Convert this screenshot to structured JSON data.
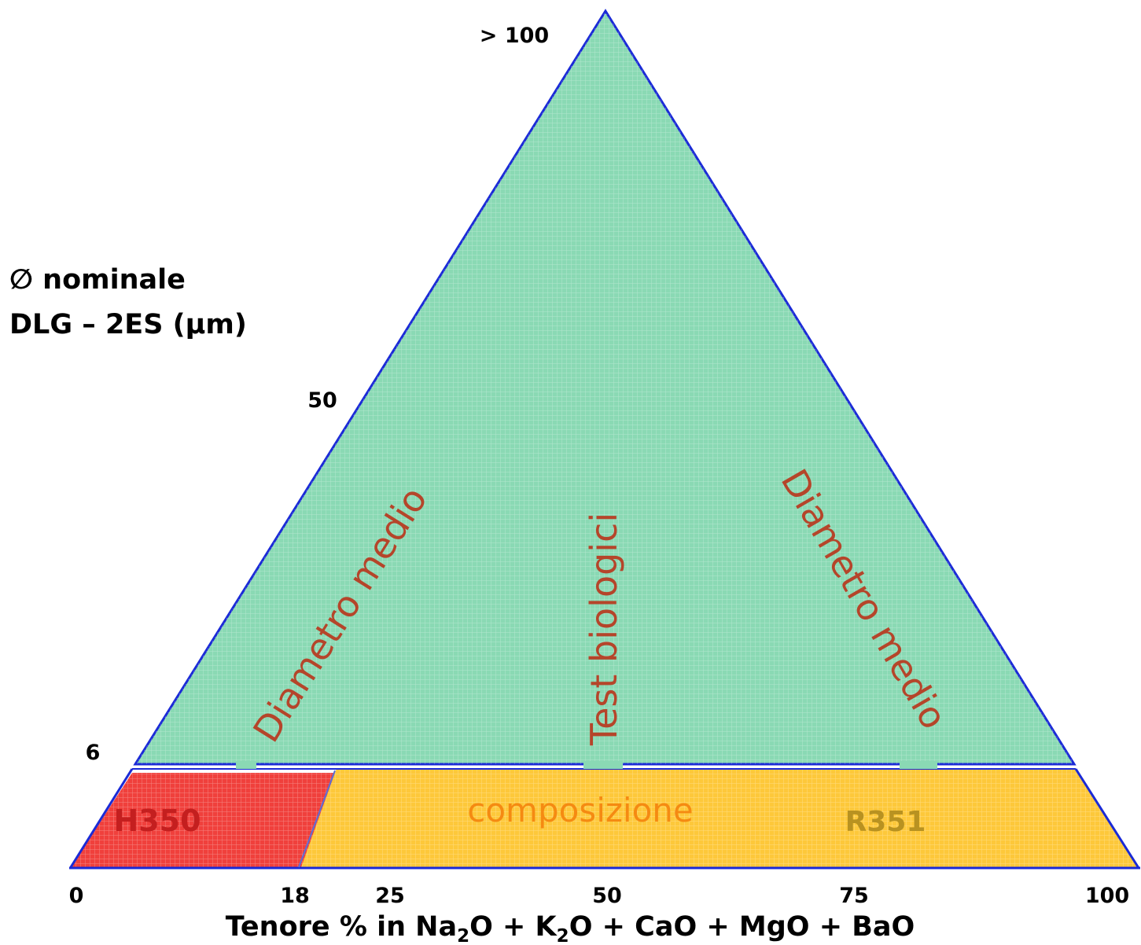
{
  "y_axis": {
    "title_line1": "∅ nominale",
    "title_line2": "DLG – 2ES (μm)",
    "ticks": [
      "> 100",
      "50",
      "6"
    ]
  },
  "x_axis": {
    "title_prefix": "Tenore % in Na",
    "title_parts": [
      "Na",
      "2",
      "O + K",
      "2",
      "O + CaO + MgO + BaO"
    ],
    "ticks": [
      "0",
      "18",
      "25",
      "50",
      "75",
      "100"
    ]
  },
  "regions": {
    "upper": {
      "color": "#8ad9b4",
      "labels": [
        "Diametro medio",
        "Test biologici",
        "Diametro medio"
      ],
      "label_color": "#b5452a"
    },
    "h350": {
      "label": "H350",
      "color": "#f0403c",
      "label_color": "#c41f1f"
    },
    "composizione": {
      "label": "composizione",
      "color": "#fdc83a",
      "label_color": "#f58a12"
    },
    "r351": {
      "label": "R351",
      "label_color": "#b89221"
    }
  },
  "colors": {
    "outline": "#1a2ad6"
  }
}
